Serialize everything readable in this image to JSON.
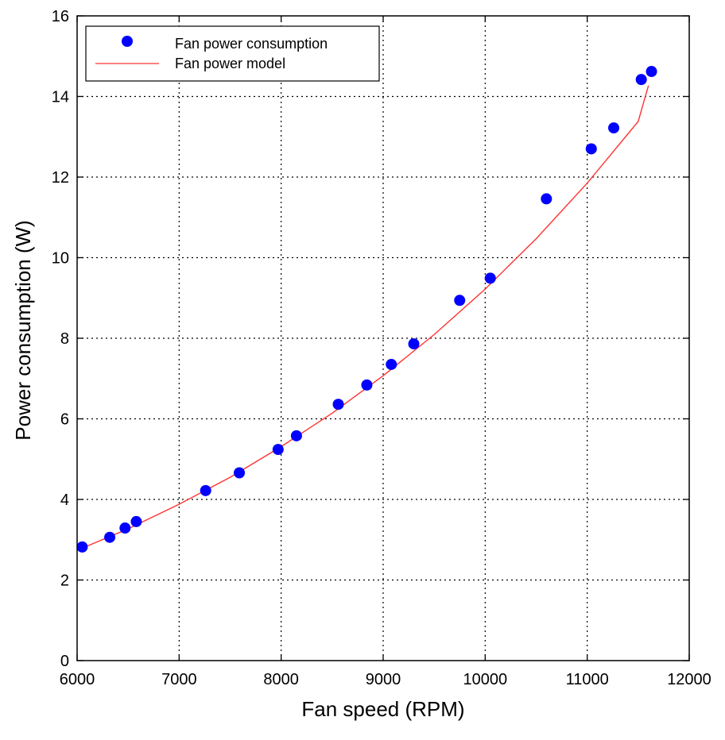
{
  "chart_data": {
    "type": "scatter",
    "xlabel": "Fan speed (RPM)",
    "ylabel": "Power consumption (W)",
    "xlim": [
      6000,
      12000
    ],
    "ylim": [
      0,
      16
    ],
    "xticks": [
      6000,
      7000,
      8000,
      9000,
      10000,
      11000,
      12000
    ],
    "yticks": [
      0,
      2,
      4,
      6,
      8,
      10,
      12,
      14,
      16
    ],
    "grid": true,
    "grid_style": "dotted",
    "legend_position": "top-left",
    "series": [
      {
        "name": "Fan power consumption",
        "kind": "markers",
        "color": "#0000ff",
        "x": [
          6050,
          6320,
          6470,
          6580,
          7260,
          7590,
          7970,
          8150,
          8560,
          8840,
          9080,
          9300,
          9750,
          10050,
          10600,
          11040,
          11260,
          11530,
          11630
        ],
        "y": [
          2.82,
          3.06,
          3.29,
          3.45,
          4.22,
          4.66,
          5.24,
          5.58,
          6.36,
          6.84,
          7.35,
          7.86,
          8.94,
          9.49,
          11.46,
          12.7,
          13.22,
          14.42,
          14.62
        ]
      },
      {
        "name": "Fan power model",
        "kind": "line",
        "color": "#ff3333",
        "x": [
          6050,
          6500,
          7000,
          7500,
          8000,
          8500,
          9000,
          9500,
          10000,
          10500,
          11000,
          11500,
          11600
        ],
        "y": [
          2.79,
          3.27,
          3.88,
          4.55,
          5.31,
          6.14,
          7.07,
          8.09,
          9.22,
          10.47,
          11.85,
          13.38,
          14.27
        ]
      }
    ]
  }
}
